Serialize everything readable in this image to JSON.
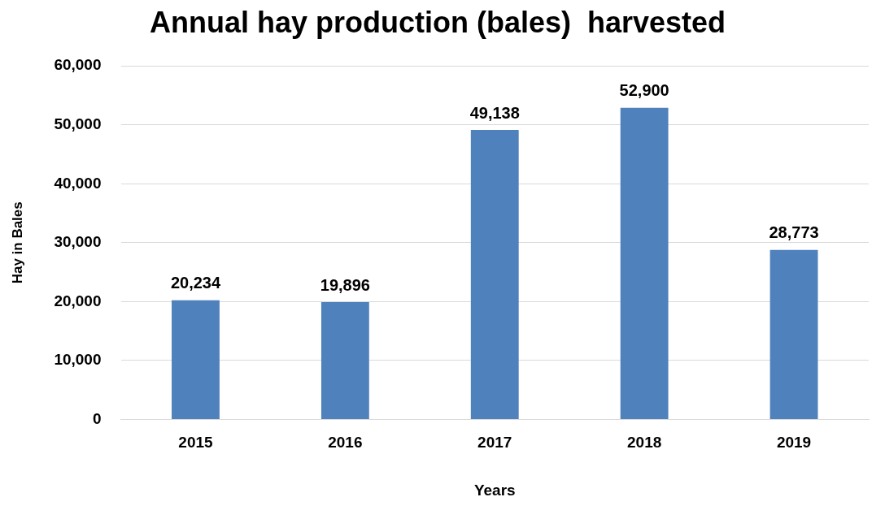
{
  "chart_data": {
    "type": "bar",
    "title": "Annual hay production (bales)  harvested",
    "xlabel": "Years",
    "ylabel": "Hay in Bales",
    "categories": [
      "2015",
      "2016",
      "2017",
      "2018",
      "2019"
    ],
    "values": [
      20234,
      19896,
      49138,
      52900,
      28773
    ],
    "value_labels": [
      "20,234",
      "19,896",
      "49,138",
      "52,900",
      "28,773"
    ],
    "color": "#4f81bd",
    "ylim": [
      0,
      60000
    ],
    "yticks": [
      {
        "value": 0,
        "label": "0"
      },
      {
        "value": 10000,
        "label": "10,000"
      },
      {
        "value": 20000,
        "label": "20,000"
      },
      {
        "value": 30000,
        "label": "30,000"
      },
      {
        "value": 40000,
        "label": "40,000"
      },
      {
        "value": 50000,
        "label": "50,000"
      },
      {
        "value": 60000,
        "label": "60,000"
      }
    ],
    "grid": "y",
    "legend": false
  }
}
